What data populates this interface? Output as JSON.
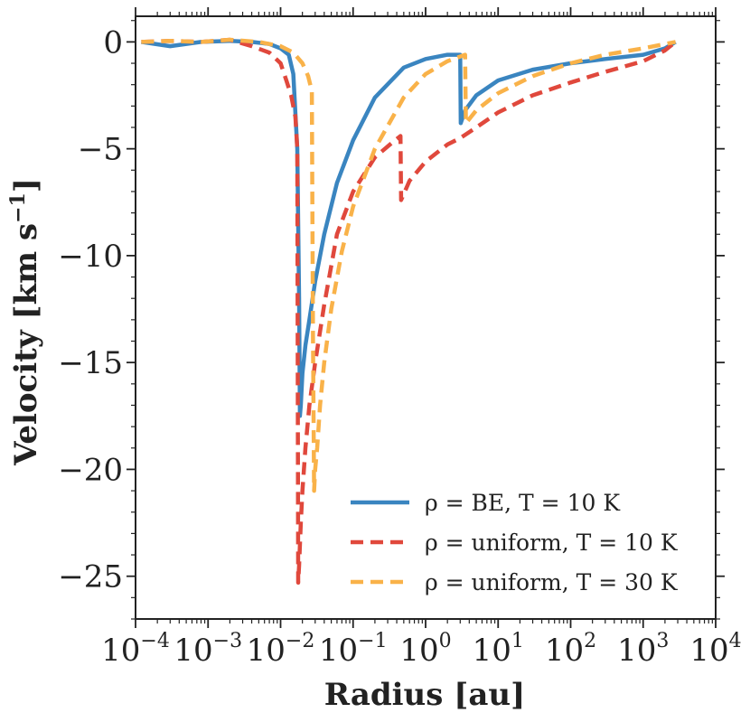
{
  "chart_data": {
    "type": "line",
    "title": "",
    "xlabel": "Radius [au]",
    "ylabel": "Velocity [km s",
    "ylabel_sup": "−1",
    "ylabel_close": "]",
    "xscale": "log",
    "xlim": [
      0.0001,
      10000
    ],
    "ylim": [
      -27,
      1.2
    ],
    "x_ticks": [
      {
        "value": 0.0001,
        "base": "10",
        "exp": "−4"
      },
      {
        "value": 0.001,
        "base": "10",
        "exp": "−3"
      },
      {
        "value": 0.01,
        "base": "10",
        "exp": "−2"
      },
      {
        "value": 0.1,
        "base": "10",
        "exp": "−1"
      },
      {
        "value": 1,
        "base": "10",
        "exp": "0"
      },
      {
        "value": 10,
        "base": "10",
        "exp": "1"
      },
      {
        "value": 100,
        "base": "10",
        "exp": "2"
      },
      {
        "value": 1000,
        "base": "10",
        "exp": "3"
      },
      {
        "value": 10000,
        "base": "10",
        "exp": "4"
      }
    ],
    "y_ticks": [
      {
        "value": 0,
        "label": "0"
      },
      {
        "value": -5,
        "label": "−5"
      },
      {
        "value": -10,
        "label": "−10"
      },
      {
        "value": -15,
        "label": "−15"
      },
      {
        "value": -20,
        "label": "−20"
      },
      {
        "value": -25,
        "label": "−25"
      }
    ],
    "legend_position": "lower-right",
    "grid": false,
    "series": [
      {
        "name": "ρ = BE, T = 10 K",
        "color": "#3a85c0",
        "dash": "solid",
        "x": [
          0.00012,
          0.0003,
          0.0008,
          0.002,
          0.004,
          0.007,
          0.01,
          0.013,
          0.015,
          0.017,
          0.018,
          0.0185,
          0.019,
          0.02,
          0.022,
          0.025,
          0.03,
          0.04,
          0.06,
          0.1,
          0.2,
          0.5,
          1,
          2,
          3,
          3.05,
          3.5,
          5,
          10,
          30,
          100,
          300,
          1000,
          2000,
          2800
        ],
        "y": [
          0,
          -0.2,
          0,
          0.05,
          0,
          -0.1,
          -0.3,
          -0.6,
          -1.5,
          -5.0,
          -12.0,
          -17.5,
          -17.0,
          -15.5,
          -14.2,
          -13.0,
          -11.2,
          -9.0,
          -6.6,
          -4.6,
          -2.6,
          -1.2,
          -0.8,
          -0.6,
          -0.6,
          -3.8,
          -3.2,
          -2.5,
          -1.8,
          -1.3,
          -1.0,
          -0.8,
          -0.6,
          -0.3,
          0
        ]
      },
      {
        "name": "ρ = uniform, T = 10 K",
        "color": "#e0483c",
        "dash": "dashed",
        "x": [
          0.00012,
          0.0003,
          0.0008,
          0.002,
          0.004,
          0.007,
          0.01,
          0.012,
          0.014,
          0.016,
          0.017,
          0.0175,
          0.018,
          0.019,
          0.02,
          0.022,
          0.025,
          0.03,
          0.04,
          0.06,
          0.1,
          0.2,
          0.35,
          0.45,
          0.46,
          0.6,
          1,
          2,
          3,
          5,
          10,
          30,
          100,
          300,
          1000,
          2000,
          2800
        ],
        "y": [
          0,
          0.05,
          0,
          0.1,
          -0.2,
          -0.5,
          -1.0,
          -1.8,
          -2.5,
          -3.5,
          -5.0,
          -25.3,
          -24.5,
          -22.5,
          -21.0,
          -19.0,
          -17.0,
          -15.0,
          -12.3,
          -9.0,
          -7.0,
          -5.4,
          -4.7,
          -4.4,
          -7.4,
          -6.5,
          -5.6,
          -4.8,
          -4.5,
          -4.0,
          -3.3,
          -2.5,
          -1.9,
          -1.4,
          -0.9,
          -0.4,
          0
        ]
      },
      {
        "name": "ρ = uniform, T = 30 K",
        "color": "#f9b249",
        "dash": "dashed",
        "x": [
          0.00012,
          0.0003,
          0.0008,
          0.002,
          0.005,
          0.01,
          0.015,
          0.02,
          0.024,
          0.027,
          0.028,
          0.029,
          0.03,
          0.032,
          0.035,
          0.04,
          0.05,
          0.07,
          0.1,
          0.2,
          0.5,
          1,
          2,
          3.5,
          3.6,
          5,
          10,
          30,
          100,
          300,
          1000,
          2800
        ],
        "y": [
          0,
          0.05,
          0,
          0.1,
          0,
          -0.2,
          -0.5,
          -1.0,
          -1.6,
          -2.3,
          -14.0,
          -21.0,
          -20.0,
          -19.0,
          -17.0,
          -15.0,
          -12.5,
          -9.8,
          -7.7,
          -5.0,
          -2.6,
          -1.5,
          -0.9,
          -0.6,
          -3.8,
          -3.2,
          -2.4,
          -1.6,
          -1.0,
          -0.6,
          -0.3,
          0
        ]
      }
    ]
  }
}
